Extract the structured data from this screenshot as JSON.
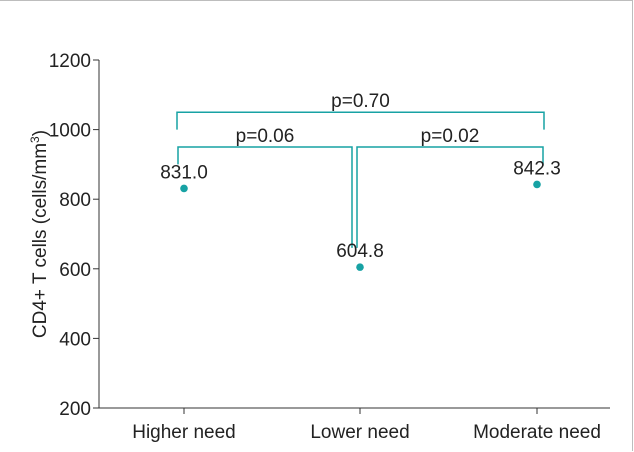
{
  "chart_data": {
    "type": "scatter",
    "categories": [
      "Higher need",
      "Lower need",
      "Moderate need"
    ],
    "values": [
      831.0,
      604.8,
      842.3
    ],
    "data_labels": [
      "831.0",
      "604.8",
      "842.3"
    ],
    "ylabel_prefix": "CD4+ T cells (cells/mm",
    "ylabel_sup": "3",
    "ylabel_suffix": ")",
    "ylim": [
      200,
      1200
    ],
    "yticks": [
      200,
      400,
      600,
      800,
      1000,
      1200
    ],
    "ytick_labels": [
      "200",
      "400",
      "600",
      "800",
      "1000",
      "1200"
    ],
    "grid": false,
    "point_color": "#17a2a4",
    "bracket_color": "#17a2a4",
    "comparisons": [
      {
        "from": 0,
        "to": 2,
        "label": "p=0.70",
        "level": 1050,
        "drop_left": 1000,
        "drop_right": 1000
      },
      {
        "from": 0,
        "to": 1,
        "label": "p=0.06",
        "level": 950,
        "drop_left": 900,
        "drop_right": 660
      },
      {
        "from": 1,
        "to": 2,
        "label": "p=0.02",
        "level": 950,
        "drop_left": 660,
        "drop_right": 900
      }
    ]
  }
}
